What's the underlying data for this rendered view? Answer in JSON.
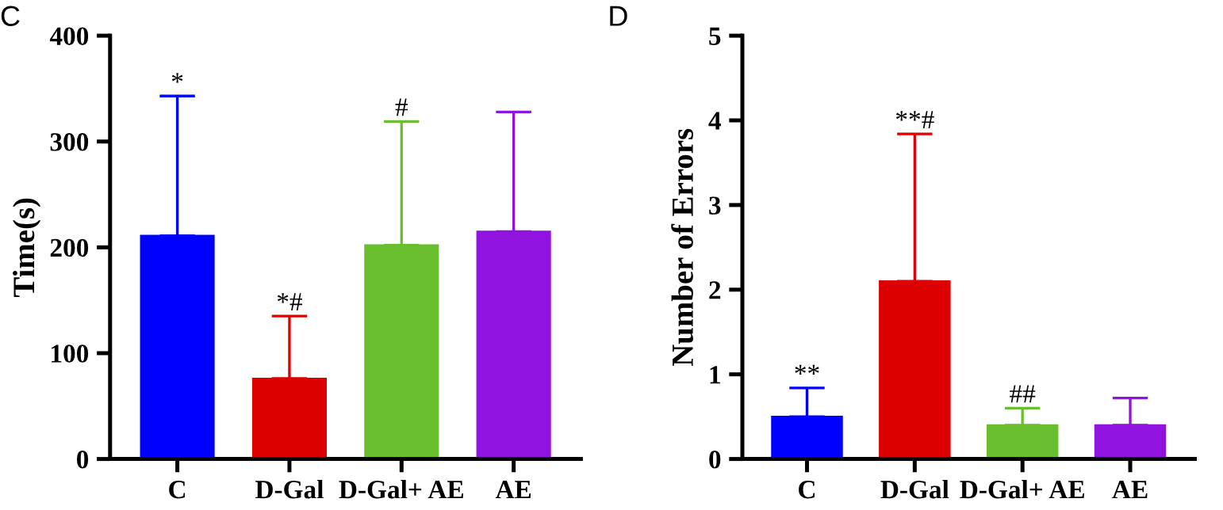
{
  "chart_data": [
    {
      "type": "bar",
      "title": "C",
      "ylabel": "Time(s)",
      "categories": [
        "C",
        "D-Gal",
        "D-Gal+ AE",
        "AE"
      ],
      "values": [
        211,
        76,
        202,
        215
      ],
      "errors": [
        [
          211,
          343
        ],
        [
          76,
          135
        ],
        [
          202,
          319
        ],
        [
          215,
          328
        ]
      ],
      "colors": [
        "#0000ff",
        "#dd0000",
        "#6abf2e",
        "#9013e0"
      ],
      "ylim": [
        0,
        400
      ],
      "yticks": [
        0,
        100,
        200,
        300,
        400
      ],
      "annotations": [
        {
          "text": "*",
          "x": "C",
          "y": 343
        },
        {
          "text": "*#",
          "x": "D-Gal",
          "y": 135
        },
        {
          "text": "#",
          "x": "D-Gal+ AE",
          "y": 319
        }
      ]
    },
    {
      "type": "bar",
      "title": "D",
      "ylabel": "Number of Errors",
      "categories": [
        "C",
        "D-Gal",
        "D-Gal+ AE",
        "AE"
      ],
      "values": [
        0.5,
        2.1,
        0.4,
        0.4
      ],
      "errors": [
        [
          0.5,
          0.84
        ],
        [
          2.1,
          3.84
        ],
        [
          0.4,
          0.6
        ],
        [
          0.4,
          0.72
        ]
      ],
      "colors": [
        "#0000ff",
        "#dd0000",
        "#6abf2e",
        "#9013e0"
      ],
      "ylim": [
        0,
        5
      ],
      "yticks": [
        0,
        1,
        2,
        3,
        4,
        5
      ],
      "annotations": [
        {
          "text": "**",
          "x": "C",
          "y": 0.84
        },
        {
          "text": "**#",
          "x": "D-Gal",
          "y": 3.84
        },
        {
          "text": "##",
          "x": "D-Gal+ AE",
          "y": 0.6
        }
      ]
    }
  ]
}
